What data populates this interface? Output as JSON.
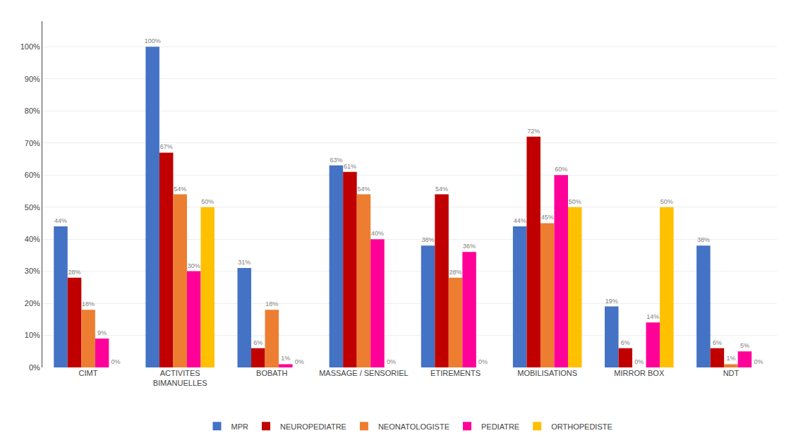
{
  "chart_data": {
    "type": "bar",
    "categories": [
      "CIMT",
      "ACTIVITES\nBIMANUELLES",
      "BOBATH",
      "MASSAGE / SENSORIEL",
      "ETIREMENTS",
      "MOBILISATIONS",
      "MIRROR BOX",
      "NDT"
    ],
    "series": [
      {
        "name": "MPR",
        "color": "#4472C4",
        "values": [
          44,
          100,
          31,
          63,
          38,
          44,
          19,
          38
        ],
        "value_labels": [
          "44%",
          "100%",
          "31%",
          "63%",
          "38%",
          "44%",
          "19%",
          "38%"
        ]
      },
      {
        "name": "NEUROPEDIATRE",
        "color": "#C00000",
        "values": [
          28,
          67,
          6,
          61,
          54,
          72,
          6,
          6
        ],
        "value_labels": [
          "28%",
          "67%",
          "6%",
          "61%",
          "54%",
          "72%",
          "6%",
          "6%"
        ]
      },
      {
        "name": "NEONATOLOGISTE",
        "color": "#ED7D31",
        "values": [
          18,
          54,
          18,
          54,
          28,
          45,
          0,
          1
        ],
        "value_labels": [
          "18%",
          "54%",
          "18%",
          "54%",
          "28%",
          "45%",
          "0%",
          "1%"
        ]
      },
      {
        "name": "PEDIATRE",
        "color": "#FF0099",
        "values": [
          9,
          30,
          1,
          40,
          36,
          60,
          14,
          5
        ],
        "value_labels": [
          "9%",
          "30%",
          "1%",
          "40%",
          "36%",
          "60%",
          "14%",
          "5%"
        ]
      },
      {
        "name": "ORTHOPEDISTE",
        "color": "#FFC000",
        "values": [
          0,
          50,
          0,
          0,
          0,
          50,
          50,
          0
        ],
        "value_labels": [
          "0%",
          "50%",
          "0%",
          "0%",
          "0%",
          "50%",
          "50%",
          "0%"
        ]
      }
    ],
    "ylim": [
      0,
      108
    ],
    "yticks": [
      {
        "value": 0,
        "label": "0%"
      },
      {
        "value": 10,
        "label": "10%"
      },
      {
        "value": 20,
        "label": "20%"
      },
      {
        "value": 30,
        "label": "30%"
      },
      {
        "value": 40,
        "label": "40%"
      },
      {
        "value": 50,
        "label": "50%"
      },
      {
        "value": 60,
        "label": "60%"
      },
      {
        "value": 70,
        "label": "70%"
      },
      {
        "value": 80,
        "label": "80%"
      },
      {
        "value": 90,
        "label": "90%"
      },
      {
        "value": 100,
        "label": "100%"
      }
    ],
    "grid": true,
    "legend": "bottom",
    "data_labels": true
  }
}
